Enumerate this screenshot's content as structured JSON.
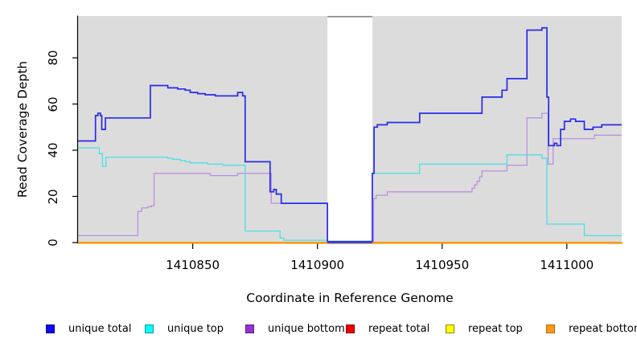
{
  "chart_data": {
    "type": "line",
    "style": "step",
    "title": "",
    "xlabel": "Coordinate in Reference Genome",
    "ylabel": "Read Coverage Depth",
    "xlim": [
      1410804,
      1411022
    ],
    "ylim": [
      0,
      98
    ],
    "xticks": [
      1410850,
      1410900,
      1410950,
      1411000
    ],
    "yticks": [
      0,
      20,
      40,
      60,
      80
    ],
    "grid": false,
    "plot_bg": "#dcdcdc",
    "axis_color": "#000000",
    "gap_region": {
      "start": 1410904,
      "end": 1410922,
      "note": "no-data white band, series drop to 0"
    },
    "legend_position": "bottom",
    "series": [
      {
        "name": "unique total",
        "color": "#2a2aea",
        "width": 1.7,
        "cross_gap": true,
        "points": [
          [
            1410804,
            44
          ],
          [
            1410811,
            55
          ],
          [
            1410812,
            56
          ],
          [
            1410813,
            55
          ],
          [
            1410813.5,
            49
          ],
          [
            1410815,
            54
          ],
          [
            1410833,
            68
          ],
          [
            1410840,
            67
          ],
          [
            1410844,
            66.5
          ],
          [
            1410847,
            66
          ],
          [
            1410849,
            65
          ],
          [
            1410852,
            64.5
          ],
          [
            1410855,
            64
          ],
          [
            1410859,
            63.5
          ],
          [
            1410868,
            65
          ],
          [
            1410870,
            63.5
          ],
          [
            1410871,
            35
          ],
          [
            1410881,
            22
          ],
          [
            1410882.5,
            23
          ],
          [
            1410883.5,
            21
          ],
          [
            1410885.5,
            17
          ],
          [
            1410904,
            0
          ],
          [
            1410922,
            30
          ],
          [
            1410922.7,
            50
          ],
          [
            1410924,
            51
          ],
          [
            1410928,
            52
          ],
          [
            1410941,
            56
          ],
          [
            1410966,
            63
          ],
          [
            1410974,
            66
          ],
          [
            1410976,
            71
          ],
          [
            1410984,
            92
          ],
          [
            1410990,
            93
          ],
          [
            1410992,
            63
          ],
          [
            1410992.7,
            42
          ],
          [
            1410995,
            43
          ],
          [
            1410996,
            42
          ],
          [
            1410997.5,
            49
          ],
          [
            1410999,
            52.5
          ],
          [
            1411001.5,
            53.5
          ],
          [
            1411003.5,
            52.5
          ],
          [
            1411007,
            49
          ],
          [
            1411010.5,
            50
          ],
          [
            1411014,
            51
          ]
        ]
      },
      {
        "name": "unique top",
        "color": "#4ddfe4",
        "width": 1.3,
        "cross_gap": true,
        "points": [
          [
            1410804,
            41
          ],
          [
            1410812.5,
            38.5
          ],
          [
            1410813.8,
            33
          ],
          [
            1410815.2,
            37
          ],
          [
            1410840,
            36.5
          ],
          [
            1410842,
            36
          ],
          [
            1410845,
            35.5
          ],
          [
            1410847,
            35
          ],
          [
            1410849,
            34.5
          ],
          [
            1410856,
            34
          ],
          [
            1410862,
            33.5
          ],
          [
            1410871,
            5
          ],
          [
            1410885,
            2
          ],
          [
            1410886.5,
            1
          ],
          [
            1410904,
            0
          ],
          [
            1410922,
            30
          ],
          [
            1410941,
            34
          ],
          [
            1410976,
            38
          ],
          [
            1410990,
            36.5
          ],
          [
            1410992,
            8
          ],
          [
            1411007,
            3
          ]
        ]
      },
      {
        "name": "unique bottom",
        "color": "#bb90dd",
        "width": 1.3,
        "cross_gap": true,
        "points": [
          [
            1410804,
            3
          ],
          [
            1410828,
            13.5
          ],
          [
            1410829.5,
            15
          ],
          [
            1410832,
            15.5
          ],
          [
            1410833.5,
            16
          ],
          [
            1410834.5,
            30
          ],
          [
            1410857,
            29
          ],
          [
            1410868,
            30
          ],
          [
            1410881.5,
            17
          ],
          [
            1410904,
            0
          ],
          [
            1410922.5,
            19
          ],
          [
            1410923.5,
            20.5
          ],
          [
            1410928,
            22
          ],
          [
            1410962,
            23.5
          ],
          [
            1410963,
            25
          ],
          [
            1410964,
            26.5
          ],
          [
            1410965,
            28.5
          ],
          [
            1410966,
            31
          ],
          [
            1410976,
            33.5
          ],
          [
            1410984,
            54
          ],
          [
            1410990,
            56
          ],
          [
            1410992.5,
            34
          ],
          [
            1410994.5,
            45
          ],
          [
            1411011,
            46.5
          ]
        ]
      },
      {
        "name": "repeat total",
        "color": "#e01010",
        "width": 1.3,
        "cross_gap": false,
        "points": [
          [
            1410804,
            0
          ]
        ]
      },
      {
        "name": "repeat top",
        "color": "#efef00",
        "width": 1.3,
        "cross_gap": false,
        "points": [
          [
            1410804,
            0
          ]
        ]
      },
      {
        "name": "repeat bottom",
        "color": "#ff8c00",
        "width": 2.1,
        "cross_gap": false,
        "points": [
          [
            1410804,
            0
          ]
        ]
      }
    ],
    "legend": [
      {
        "label": "unique total",
        "fill": "#0d0dee",
        "border": "#000090"
      },
      {
        "label": "unique top",
        "fill": "#00ffff",
        "border": "#009999"
      },
      {
        "label": "unique bottom",
        "fill": "#9932cc",
        "border": "#5c1a8b"
      },
      {
        "label": "repeat total",
        "fill": "#ee0000",
        "border": "#8b0000"
      },
      {
        "label": "repeat top",
        "fill": "#ffff00",
        "border": "#8b8b00"
      },
      {
        "label": "repeat bottom",
        "fill": "#ff9912",
        "border": "#b36b00"
      }
    ]
  }
}
